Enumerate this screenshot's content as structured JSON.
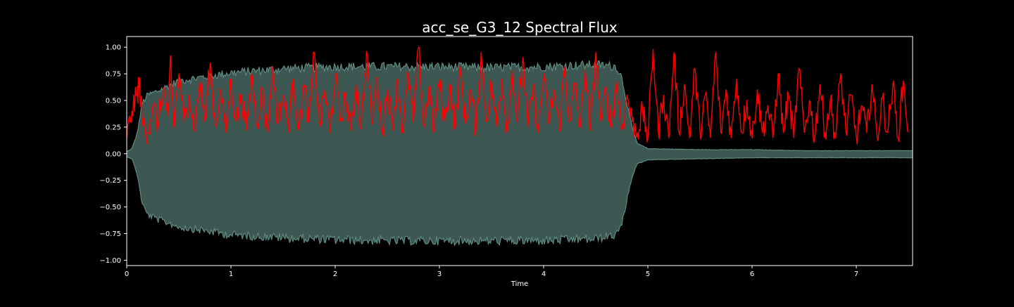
{
  "chart_data": {
    "type": "line",
    "title": "acc_se_G3_12 Spectral Flux",
    "xlabel": "Time",
    "ylabel": "",
    "xlim": [
      0,
      7.54
    ],
    "ylim": [
      -1.05,
      1.1
    ],
    "x_ticks": [
      0,
      1,
      2,
      3,
      4,
      5,
      6,
      7
    ],
    "x_tick_labels": [
      "0",
      "1",
      "2",
      "3",
      "4",
      "5",
      "6",
      "7"
    ],
    "y_ticks": [
      -1.0,
      -0.75,
      -0.5,
      -0.25,
      0.0,
      0.25,
      0.5,
      0.75,
      1.0
    ],
    "y_tick_labels": [
      "−1.00",
      "−0.75",
      "−0.50",
      "−0.25",
      "0.00",
      "0.25",
      "0.50",
      "0.75",
      "1.00"
    ],
    "grid": false,
    "legend": "none",
    "series": [
      {
        "kind": "waveform-envelope",
        "color": "#3d5752",
        "edge_color": "#5e8a80",
        "x": [
          0.0,
          0.05,
          0.1,
          0.15,
          0.2,
          0.3,
          0.5,
          1.0,
          1.5,
          2.0,
          2.5,
          3.0,
          3.5,
          4.0,
          4.5,
          4.7,
          4.75,
          4.8,
          4.85,
          4.9,
          5.0,
          5.5,
          6.0,
          6.5,
          7.0,
          7.54
        ],
        "upper": [
          0.02,
          0.05,
          0.2,
          0.5,
          0.58,
          0.62,
          0.72,
          0.8,
          0.84,
          0.86,
          0.86,
          0.86,
          0.85,
          0.86,
          0.88,
          0.86,
          0.75,
          0.5,
          0.25,
          0.1,
          0.05,
          0.04,
          0.04,
          0.03,
          0.03,
          0.03
        ],
        "lower": [
          -0.03,
          -0.05,
          -0.2,
          -0.5,
          -0.6,
          -0.65,
          -0.72,
          -0.8,
          -0.83,
          -0.85,
          -0.86,
          -0.86,
          -0.86,
          -0.86,
          -0.84,
          -0.8,
          -0.7,
          -0.45,
          -0.22,
          -0.1,
          -0.06,
          -0.05,
          -0.04,
          -0.04,
          -0.04,
          -0.04
        ]
      },
      {
        "kind": "line",
        "name": "",
        "color": "#ff0000",
        "x": [
          0.0,
          0.05,
          0.1,
          0.12,
          0.15,
          0.2,
          0.25,
          0.3,
          0.35,
          0.4,
          0.42,
          0.45,
          0.5,
          0.55,
          0.6,
          0.65,
          0.7,
          0.75,
          0.8,
          0.85,
          0.9,
          0.95,
          1.0,
          1.05,
          1.1,
          1.15,
          1.2,
          1.25,
          1.3,
          1.35,
          1.4,
          1.45,
          1.5,
          1.55,
          1.6,
          1.65,
          1.7,
          1.75,
          1.8,
          1.85,
          1.9,
          1.95,
          2.0,
          2.05,
          2.1,
          2.15,
          2.2,
          2.25,
          2.3,
          2.35,
          2.4,
          2.45,
          2.5,
          2.55,
          2.6,
          2.65,
          2.7,
          2.75,
          2.8,
          2.85,
          2.9,
          2.95,
          3.0,
          3.05,
          3.1,
          3.15,
          3.2,
          3.25,
          3.3,
          3.35,
          3.4,
          3.45,
          3.5,
          3.55,
          3.6,
          3.65,
          3.7,
          3.75,
          3.8,
          3.85,
          3.9,
          3.95,
          4.0,
          4.05,
          4.1,
          4.15,
          4.2,
          4.25,
          4.3,
          4.35,
          4.4,
          4.45,
          4.5,
          4.55,
          4.6,
          4.65,
          4.7,
          4.75,
          4.8,
          4.85,
          4.9,
          4.95,
          5.0,
          5.05,
          5.1,
          5.15,
          5.2,
          5.25,
          5.3,
          5.35,
          5.4,
          5.45,
          5.5,
          5.55,
          5.6,
          5.65,
          5.7,
          5.75,
          5.8,
          5.85,
          5.9,
          5.95,
          6.0,
          6.05,
          6.1,
          6.15,
          6.2,
          6.25,
          6.3,
          6.35,
          6.4,
          6.45,
          6.5,
          6.55,
          6.6,
          6.65,
          6.7,
          6.75,
          6.8,
          6.85,
          6.9,
          6.95,
          7.0,
          7.05,
          7.1,
          7.15,
          7.2,
          7.25,
          7.3,
          7.35,
          7.4,
          7.45,
          7.5
        ],
        "y": [
          0.15,
          0.4,
          0.55,
          0.68,
          0.3,
          0.2,
          0.45,
          0.28,
          0.62,
          0.35,
          0.92,
          0.25,
          0.75,
          0.3,
          0.55,
          0.22,
          0.68,
          0.3,
          0.85,
          0.25,
          0.6,
          0.2,
          0.7,
          0.3,
          0.55,
          0.22,
          0.75,
          0.28,
          0.6,
          0.2,
          0.82,
          0.3,
          0.55,
          0.25,
          0.7,
          0.22,
          0.65,
          0.3,
          0.95,
          0.25,
          0.6,
          0.2,
          0.75,
          0.3,
          0.55,
          0.22,
          0.65,
          0.25,
          0.96,
          0.3,
          0.7,
          0.22,
          0.6,
          0.28,
          0.68,
          0.2,
          0.75,
          0.3,
          1.0,
          0.25,
          0.62,
          0.22,
          0.7,
          0.3,
          0.65,
          0.25,
          0.8,
          0.28,
          0.6,
          0.22,
          0.95,
          0.3,
          0.65,
          0.25,
          0.7,
          0.22,
          0.78,
          0.3,
          0.9,
          0.25,
          0.62,
          0.2,
          0.75,
          0.28,
          0.6,
          0.22,
          0.82,
          0.3,
          0.65,
          0.25,
          0.78,
          0.22,
          0.95,
          0.3,
          0.6,
          0.25,
          0.68,
          0.22,
          0.55,
          0.3,
          0.2,
          0.4,
          0.15,
          0.98,
          0.2,
          0.55,
          0.15,
          0.95,
          0.2,
          0.65,
          0.15,
          0.8,
          0.2,
          0.55,
          0.15,
          0.95,
          0.2,
          0.6,
          0.15,
          0.7,
          0.2,
          0.5,
          0.15,
          0.6,
          0.2,
          0.45,
          0.15,
          0.75,
          0.2,
          0.55,
          0.15,
          0.8,
          0.2,
          0.5,
          0.15,
          0.65,
          0.2,
          0.5,
          0.15,
          0.75,
          0.2,
          0.55,
          0.15,
          0.45,
          0.2,
          0.65,
          0.15,
          0.52,
          0.2,
          0.65,
          0.15,
          0.68,
          0.2
        ]
      }
    ]
  }
}
